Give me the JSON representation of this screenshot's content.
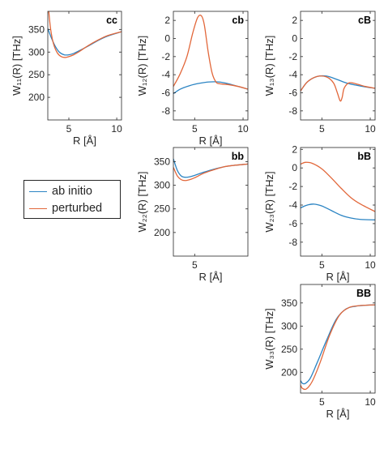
{
  "colors": {
    "ab_initio": "#2b84c3",
    "perturbed": "#e2673a",
    "axis": "#262626"
  },
  "legend": {
    "position": "left",
    "entries": [
      "ab initio",
      "perturbed"
    ]
  },
  "chart_data": [
    {
      "type": "line",
      "panel_label": "cc",
      "xlabel": "R [Å]",
      "ylabel": "W₁₁(R) [THz]",
      "xlim": [
        2.8,
        10.5
      ],
      "ylim": [
        150,
        390
      ],
      "xticks": [
        5,
        10
      ],
      "yticks": [
        200,
        250,
        300,
        350
      ],
      "series": [
        {
          "name": "ab initio",
          "x": [
            2.8,
            3.2,
            3.6,
            4.0,
            4.5,
            5.0,
            5.5,
            6.0,
            7.0,
            8.0,
            9.0,
            10.5
          ],
          "y": [
            352,
            330,
            312,
            300,
            294,
            294,
            297,
            302,
            313,
            325,
            335,
            345
          ]
        },
        {
          "name": "perturbed",
          "x": [
            2.9,
            3.1,
            3.4,
            3.8,
            4.2,
            4.6,
            5.0,
            5.5,
            6.0,
            7.0,
            8.0,
            9.0,
            10.5
          ],
          "y": [
            390,
            350,
            318,
            298,
            290,
            288,
            290,
            294,
            300,
            314,
            326,
            336,
            345
          ]
        }
      ]
    },
    {
      "type": "line",
      "panel_label": "cb",
      "xlabel": "R [Å]",
      "ylabel": "W₁₂(R) [THz]",
      "xlim": [
        2.8,
        10.5
      ],
      "ylim": [
        -9,
        3
      ],
      "xticks": [
        5,
        10
      ],
      "yticks": [
        -8,
        -6,
        -4,
        -2,
        0,
        2
      ],
      "series": [
        {
          "name": "ab initio",
          "x": [
            2.8,
            3.5,
            4.5,
            5.5,
            6.5,
            7.5,
            8.5,
            9.5,
            10.5
          ],
          "y": [
            -6.1,
            -5.6,
            -5.2,
            -4.95,
            -4.8,
            -4.8,
            -5.0,
            -5.3,
            -5.6
          ]
        },
        {
          "name": "perturbed",
          "x": [
            2.8,
            3.5,
            4.2,
            4.8,
            5.3,
            5.7,
            6.0,
            6.4,
            6.8,
            7.2,
            7.6,
            8.5,
            9.5,
            10.5
          ],
          "y": [
            -5.3,
            -3.9,
            -2.0,
            0.6,
            2.3,
            2.5,
            1.5,
            -1.5,
            -3.8,
            -4.8,
            -5.0,
            -5.1,
            -5.3,
            -5.6
          ]
        }
      ]
    },
    {
      "type": "line",
      "panel_label": "cB",
      "xlabel": "",
      "ylabel": "W₁₃(R) [THz]",
      "xlim": [
        2.8,
        10.5
      ],
      "ylim": [
        -9,
        3
      ],
      "xticks": [
        5,
        10
      ],
      "yticks": [
        -8,
        -6,
        -4,
        -2,
        0,
        2
      ],
      "series": [
        {
          "name": "ab initio",
          "x": [
            2.8,
            3.5,
            4.5,
            5.5,
            6.5,
            7.5,
            8.5,
            9.5,
            10.5
          ],
          "y": [
            -5.8,
            -4.8,
            -4.2,
            -4.15,
            -4.5,
            -4.9,
            -5.15,
            -5.35,
            -5.5
          ]
        },
        {
          "name": "perturbed",
          "x": [
            2.8,
            3.5,
            4.5,
            5.5,
            6.2,
            6.6,
            6.9,
            7.1,
            7.3,
            7.8,
            8.5,
            9.5,
            10.5
          ],
          "y": [
            -5.8,
            -4.8,
            -4.2,
            -4.25,
            -4.9,
            -6.0,
            -6.9,
            -6.5,
            -5.5,
            -4.9,
            -5.0,
            -5.3,
            -5.5
          ]
        }
      ]
    },
    {
      "type": "line",
      "panel_label": "bb",
      "xlabel": "R [Å]",
      "ylabel": "W₂₂(R) [THz]",
      "xlim": [
        2.8,
        10.5
      ],
      "ylim": [
        150,
        380
      ],
      "xticks": [
        5
      ],
      "yticks": [
        200,
        250,
        300,
        350
      ],
      "series": [
        {
          "name": "ab initio",
          "x": [
            2.8,
            3.2,
            3.6,
            4.0,
            4.5,
            5.0,
            6.0,
            7.0,
            8.0,
            9.0,
            10.5
          ],
          "y": [
            356,
            332,
            320,
            317,
            318,
            321,
            328,
            334,
            339,
            342,
            345
          ]
        },
        {
          "name": "perturbed",
          "x": [
            2.8,
            3.2,
            3.6,
            4.0,
            4.5,
            5.0,
            6.0,
            7.0,
            8.0,
            9.0,
            10.5
          ],
          "y": [
            338,
            320,
            312,
            310,
            312,
            316,
            326,
            333,
            339,
            342,
            345
          ]
        }
      ]
    },
    {
      "type": "line",
      "panel_label": "bB",
      "xlabel": "R [Å]",
      "ylabel": "W₂₃(R) [THz]",
      "xlim": [
        2.8,
        10.5
      ],
      "ylim": [
        -9.5,
        2.2
      ],
      "xticks": [
        5,
        10
      ],
      "yticks": [
        -8,
        -6,
        -4,
        -2,
        0,
        2
      ],
      "series": [
        {
          "name": "ab initio",
          "x": [
            2.8,
            3.5,
            4.2,
            5.0,
            6.0,
            7.0,
            8.0,
            9.0,
            10.5
          ],
          "y": [
            -4.3,
            -4.0,
            -3.9,
            -4.1,
            -4.6,
            -5.1,
            -5.4,
            -5.55,
            -5.6
          ]
        },
        {
          "name": "perturbed",
          "x": [
            2.8,
            3.3,
            4.0,
            5.0,
            6.0,
            7.0,
            8.0,
            9.0,
            10.5
          ],
          "y": [
            0.4,
            0.6,
            0.5,
            -0.1,
            -1.1,
            -2.2,
            -3.2,
            -3.9,
            -4.7
          ]
        }
      ]
    },
    {
      "type": "line",
      "panel_label": "BB",
      "xlabel": "R [Å]",
      "ylabel": "W₃₃(R) [THz]",
      "xlim": [
        2.8,
        10.5
      ],
      "ylim": [
        155,
        390
      ],
      "xticks": [
        5,
        10
      ],
      "yticks": [
        200,
        250,
        300,
        350
      ],
      "series": [
        {
          "name": "ab initio",
          "x": [
            2.8,
            3.0,
            3.3,
            3.8,
            4.5,
            5.5,
            6.5,
            7.5,
            8.5,
            9.5,
            10.5
          ],
          "y": [
            182,
            176,
            176,
            187,
            220,
            270,
            315,
            337,
            343,
            345,
            346
          ]
        },
        {
          "name": "perturbed",
          "x": [
            2.8,
            3.0,
            3.4,
            4.0,
            4.8,
            5.8,
            6.8,
            7.8,
            8.8,
            9.5,
            10.5
          ],
          "y": [
            172,
            165,
            164,
            180,
            220,
            280,
            323,
            340,
            344,
            345,
            346
          ]
        }
      ]
    }
  ]
}
